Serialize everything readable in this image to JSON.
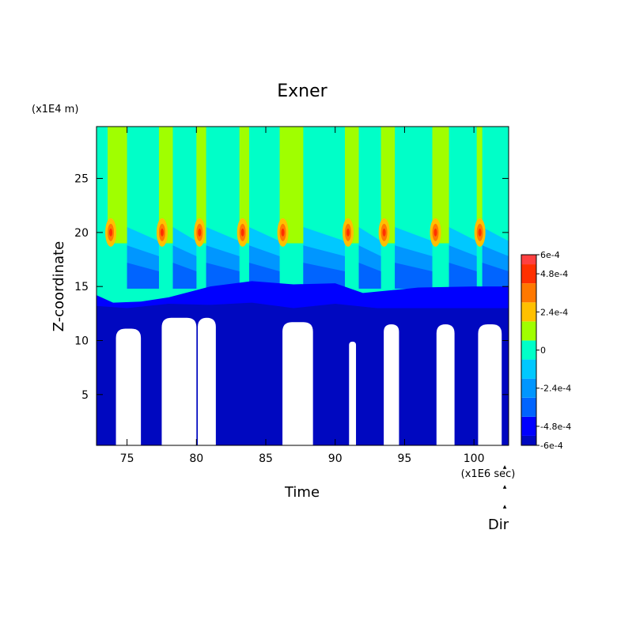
{
  "chart_data": {
    "type": "heatmap",
    "title": "Exner",
    "xlabel": "Time",
    "ylabel": "Z-coordinate",
    "x_unit": "(x1E6 sec)",
    "y_unit": "(x1E4 m)",
    "xlim": [
      72.8,
      102.5
    ],
    "ylim": [
      0.3,
      29.8
    ],
    "x_ticks": [
      75,
      80,
      85,
      90,
      95,
      100
    ],
    "y_ticks": [
      5,
      10,
      15,
      20,
      25
    ],
    "grid": false,
    "annotation": "Dir",
    "colorbar": {
      "position": "right",
      "tick_labels": [
        "6e-4",
        "4.8e-4",
        "2.4e-4",
        "0",
        "-2.4e-4",
        "-4.8e-4",
        "-6e-4"
      ],
      "tick_values": [
        0.0006,
        0.00048,
        0.00024,
        0,
        -0.00024,
        -0.00048,
        -0.0006
      ],
      "levels": [
        {
          "lo": -0.0006,
          "hi": -0.00054,
          "color": "#0008c0"
        },
        {
          "lo": -0.00054,
          "hi": -0.00042,
          "color": "#0000ff"
        },
        {
          "lo": -0.00042,
          "hi": -0.0003,
          "color": "#0064ff"
        },
        {
          "lo": -0.0003,
          "hi": -0.00018,
          "color": "#0096ff"
        },
        {
          "lo": -0.00018,
          "hi": -6e-05,
          "color": "#00c8ff"
        },
        {
          "lo": -6e-05,
          "hi": 6e-05,
          "color": "#00ffc8"
        },
        {
          "lo": 6e-05,
          "hi": 0.00018,
          "color": "#a0ff00"
        },
        {
          "lo": 0.00018,
          "hi": 0.0003,
          "color": "#ffc000"
        },
        {
          "lo": 0.0003,
          "hi": 0.00042,
          "color": "#ff7800"
        },
        {
          "lo": 0.00042,
          "hi": 0.00054,
          "color": "#ff3000"
        },
        {
          "lo": 0.00054,
          "hi": 0.0006,
          "color": "#ff4040"
        }
      ]
    },
    "bands": [
      {
        "name": "background",
        "color": "#00ffc8"
      },
      {
        "name": "light-blue",
        "color": "#00c8ff"
      },
      {
        "name": "mid-blue",
        "color": "#0096ff"
      },
      {
        "name": "blue",
        "color": "#0064ff"
      },
      {
        "name": "deep-blue",
        "color": "#0000ff"
      },
      {
        "name": "navy",
        "color": "#0008c0"
      },
      {
        "name": "below-min",
        "color": "#ffffff"
      }
    ],
    "events": [
      {
        "t0": 73.6,
        "t1": 75.0,
        "peak_z": 20.0
      },
      {
        "t0": 77.3,
        "t1": 78.3,
        "peak_z": 20.0
      },
      {
        "t0": 80.0,
        "t1": 80.7,
        "peak_z": 20.0
      },
      {
        "t0": 83.1,
        "t1": 83.8,
        "peak_z": 20.0
      },
      {
        "t0": 86.0,
        "t1": 87.7,
        "peak_z": 20.0
      },
      {
        "t0": 90.7,
        "t1": 91.7,
        "peak_z": 20.0
      },
      {
        "t0": 93.3,
        "t1": 94.3,
        "peak_z": 20.0
      },
      {
        "t0": 97.0,
        "t1": 98.2,
        "peak_z": 20.0
      },
      {
        "t0": 100.2,
        "t1": 100.6,
        "peak_z": 20.0
      }
    ],
    "low_regions": [
      {
        "t0": 74.2,
        "t1": 76.0,
        "top_z": 11.1
      },
      {
        "t0": 77.5,
        "t1": 80.0,
        "top_z": 12.1
      },
      {
        "t0": 80.1,
        "t1": 81.4,
        "top_z": 12.1
      },
      {
        "t0": 86.2,
        "t1": 88.4,
        "top_z": 11.7
      },
      {
        "t0": 91.0,
        "t1": 91.5,
        "top_z": 9.9
      },
      {
        "t0": 93.5,
        "t1": 94.6,
        "top_z": 11.5
      },
      {
        "t0": 97.3,
        "t1": 98.6,
        "top_z": 11.5
      },
      {
        "t0": 100.3,
        "t1": 102.0,
        "top_z": 11.5
      }
    ],
    "deep_band_top_z": [
      {
        "x": 72.8,
        "z": 14.2
      },
      {
        "x": 74.0,
        "z": 13.5
      },
      {
        "x": 76.0,
        "z": 13.6
      },
      {
        "x": 78.0,
        "z": 14.0
      },
      {
        "x": 81.0,
        "z": 15.0
      },
      {
        "x": 84.0,
        "z": 15.5
      },
      {
        "x": 87.0,
        "z": 15.2
      },
      {
        "x": 90.0,
        "z": 15.3
      },
      {
        "x": 92.0,
        "z": 14.4
      },
      {
        "x": 96.0,
        "z": 14.9
      },
      {
        "x": 100.0,
        "z": 15.0
      },
      {
        "x": 102.5,
        "z": 15.0
      }
    ],
    "navy_band_top_z": [
      {
        "x": 72.8,
        "z": 13.2
      },
      {
        "x": 75.0,
        "z": 13.0
      },
      {
        "x": 78.0,
        "z": 13.4
      },
      {
        "x": 81.0,
        "z": 13.3
      },
      {
        "x": 84.0,
        "z": 13.5
      },
      {
        "x": 87.0,
        "z": 13.0
      },
      {
        "x": 90.0,
        "z": 13.4
      },
      {
        "x": 93.0,
        "z": 13.0
      },
      {
        "x": 96.0,
        "z": 13.0
      },
      {
        "x": 100.0,
        "z": 13.0
      },
      {
        "x": 102.5,
        "z": 13.0
      }
    ]
  }
}
